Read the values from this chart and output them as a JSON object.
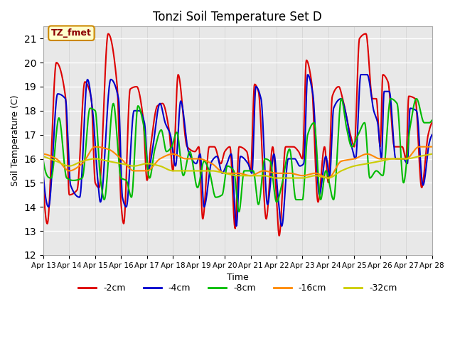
{
  "title": "Tonzi Soil Temperature Set D",
  "xlabel": "Time",
  "ylabel": "Soil Temperature (C)",
  "ylim": [
    12.0,
    21.5
  ],
  "yticks": [
    12.0,
    13.0,
    14.0,
    15.0,
    16.0,
    17.0,
    18.0,
    19.0,
    20.0,
    21.0
  ],
  "xtick_labels": [
    "Apr 13",
    "Apr 14",
    "Apr 15",
    "Apr 16",
    "Apr 17",
    "Apr 18",
    "Apr 19",
    "Apr 20",
    "Apr 21",
    "Apr 22",
    "Apr 23",
    "Apr 24",
    "Apr 25",
    "Apr 26",
    "Apr 27",
    "Apr 28"
  ],
  "legend_labels": [
    "-2cm",
    "-4cm",
    "-8cm",
    "-16cm",
    "-32cm"
  ],
  "line_colors": [
    "#dd0000",
    "#0000cc",
    "#00bb00",
    "#ff8800",
    "#cccc00"
  ],
  "line_widths": [
    1.5,
    1.5,
    1.5,
    1.5,
    1.5
  ],
  "axes_background": "#e8e8e8",
  "grid_color": "#ffffff",
  "annotation_text": "TZ_fmet",
  "annotation_box_color": "#ffffcc",
  "annotation_box_edge": "#cc8800",
  "d2_keypoints_x": [
    0.0,
    0.15,
    0.5,
    0.85,
    1.0,
    1.3,
    1.6,
    1.85,
    2.0,
    2.15,
    2.5,
    2.85,
    3.0,
    3.1,
    3.35,
    3.6,
    3.85,
    4.0,
    4.15,
    4.4,
    4.6,
    4.85,
    5.0,
    5.2,
    5.55,
    5.85,
    6.0,
    6.15,
    6.4,
    6.6,
    6.85,
    7.0,
    7.2,
    7.4,
    7.55,
    7.85,
    8.0,
    8.15,
    8.3,
    8.6,
    8.85,
    9.0,
    9.1,
    9.35,
    9.65,
    9.85,
    10.0,
    10.15,
    10.35,
    10.6,
    10.85,
    11.0,
    11.15,
    11.4,
    11.55,
    11.85,
    12.0,
    12.2,
    12.45,
    12.7,
    12.85,
    13.0,
    13.1,
    13.3,
    13.55,
    13.85,
    14.0,
    14.1,
    14.35,
    14.6,
    14.85,
    15.0
  ],
  "d2_keypoints_y": [
    14.9,
    13.3,
    20.0,
    18.6,
    14.5,
    14.7,
    19.2,
    18.5,
    15.0,
    14.8,
    21.2,
    19.0,
    14.1,
    13.3,
    18.9,
    19.0,
    17.7,
    15.1,
    16.6,
    18.2,
    18.3,
    17.2,
    15.5,
    19.5,
    16.5,
    16.3,
    16.5,
    13.5,
    16.5,
    16.5,
    15.8,
    16.3,
    16.5,
    13.1,
    16.5,
    16.3,
    15.5,
    19.1,
    18.8,
    13.5,
    16.5,
    14.3,
    12.8,
    16.5,
    16.5,
    16.3,
    16.0,
    20.1,
    19.2,
    14.2,
    16.5,
    15.0,
    18.6,
    19.0,
    18.5,
    17.0,
    16.5,
    21.0,
    21.2,
    18.5,
    18.5,
    16.5,
    19.5,
    19.2,
    16.5,
    16.5,
    16.0,
    18.6,
    18.5,
    14.8,
    17.0,
    17.5
  ],
  "d4_keypoints_x": [
    0.0,
    0.2,
    0.55,
    0.85,
    1.05,
    1.4,
    1.7,
    1.9,
    2.1,
    2.2,
    2.6,
    2.9,
    3.05,
    3.2,
    3.5,
    3.7,
    3.9,
    4.05,
    4.2,
    4.5,
    4.7,
    4.9,
    5.1,
    5.3,
    5.6,
    5.9,
    6.05,
    6.2,
    6.5,
    6.7,
    6.9,
    7.05,
    7.25,
    7.45,
    7.6,
    7.9,
    8.05,
    8.2,
    8.4,
    8.65,
    8.9,
    9.05,
    9.2,
    9.45,
    9.7,
    9.9,
    10.05,
    10.2,
    10.4,
    10.65,
    10.9,
    11.05,
    11.2,
    11.5,
    11.65,
    11.9,
    12.05,
    12.25,
    12.5,
    12.75,
    12.9,
    13.05,
    13.15,
    13.35,
    13.6,
    13.9,
    14.05,
    14.15,
    14.4,
    14.65,
    14.9,
    15.0
  ],
  "d4_keypoints_y": [
    15.3,
    14.0,
    18.7,
    18.5,
    14.9,
    14.4,
    19.3,
    18.0,
    15.1,
    14.2,
    19.3,
    18.5,
    14.4,
    14.0,
    18.0,
    18.0,
    17.5,
    15.5,
    16.3,
    18.3,
    17.5,
    17.0,
    15.7,
    18.4,
    16.3,
    15.8,
    16.2,
    14.0,
    15.9,
    16.1,
    15.4,
    15.7,
    16.2,
    13.2,
    16.1,
    15.8,
    15.4,
    19.0,
    18.5,
    14.1,
    16.2,
    14.5,
    13.2,
    16.0,
    16.0,
    15.7,
    15.8,
    19.5,
    18.7,
    14.5,
    16.1,
    15.3,
    18.1,
    18.5,
    18.0,
    16.5,
    16.0,
    19.5,
    19.5,
    18.0,
    17.5,
    16.0,
    18.8,
    18.8,
    16.0,
    16.0,
    15.8,
    18.1,
    18.0,
    14.9,
    16.7,
    17.0
  ],
  "d8_keypoints_x": [
    0.0,
    0.3,
    0.6,
    0.9,
    1.15,
    1.5,
    1.8,
    2.0,
    2.2,
    2.35,
    2.7,
    3.0,
    3.2,
    3.4,
    3.65,
    3.85,
    4.1,
    4.3,
    4.55,
    4.75,
    4.95,
    5.15,
    5.4,
    5.65,
    5.95,
    6.2,
    6.4,
    6.65,
    6.9,
    7.1,
    7.35,
    7.55,
    7.75,
    8.1,
    8.3,
    8.55,
    8.75,
    9.0,
    9.2,
    9.5,
    9.75,
    10.0,
    10.2,
    10.45,
    10.7,
    10.9,
    11.2,
    11.5,
    11.7,
    11.9,
    12.15,
    12.4,
    12.6,
    12.85,
    13.1,
    13.4,
    13.65,
    13.9,
    14.15,
    14.4,
    14.7,
    14.9,
    15.0
  ],
  "d8_keypoints_y": [
    15.9,
    15.2,
    17.7,
    15.2,
    15.1,
    15.2,
    18.1,
    18.0,
    15.2,
    14.3,
    18.3,
    15.2,
    15.1,
    14.4,
    18.2,
    17.5,
    15.2,
    16.4,
    17.2,
    16.3,
    16.5,
    17.1,
    15.3,
    16.3,
    14.8,
    15.9,
    15.5,
    14.4,
    14.5,
    15.7,
    15.5,
    13.8,
    15.5,
    15.5,
    14.1,
    16.0,
    15.9,
    14.2,
    14.9,
    16.4,
    14.3,
    14.3,
    17.0,
    17.5,
    14.3,
    15.5,
    14.3,
    18.5,
    17.3,
    16.5,
    17.0,
    17.5,
    15.2,
    15.5,
    15.3,
    18.5,
    18.3,
    15.0,
    17.3,
    18.5,
    17.5,
    17.5,
    17.6
  ],
  "d16_keypoints_x": [
    0.0,
    0.5,
    1.0,
    1.5,
    2.0,
    2.5,
    3.0,
    3.5,
    4.0,
    4.5,
    5.0,
    5.5,
    6.0,
    6.5,
    7.0,
    7.5,
    8.0,
    8.5,
    9.0,
    9.5,
    10.0,
    10.5,
    11.0,
    11.5,
    12.0,
    12.5,
    13.0,
    13.5,
    14.0,
    14.5,
    15.0
  ],
  "d16_keypoints_y": [
    16.2,
    16.0,
    15.5,
    15.8,
    16.5,
    16.4,
    16.0,
    15.5,
    15.5,
    16.0,
    16.2,
    16.0,
    16.0,
    15.8,
    15.4,
    15.4,
    15.3,
    15.5,
    15.4,
    15.4,
    15.3,
    15.4,
    15.2,
    15.9,
    16.0,
    16.2,
    16.0,
    16.0,
    16.0,
    16.5,
    16.5
  ],
  "d32_keypoints_x": [
    0.0,
    0.5,
    1.0,
    1.5,
    2.0,
    2.5,
    3.0,
    3.5,
    4.0,
    4.5,
    5.0,
    5.5,
    6.0,
    6.5,
    7.0,
    7.5,
    8.0,
    8.5,
    9.0,
    9.5,
    10.0,
    10.5,
    11.0,
    11.5,
    12.0,
    12.5,
    13.0,
    13.5,
    14.0,
    14.5,
    15.0
  ],
  "d32_keypoints_y": [
    16.1,
    15.9,
    15.7,
    15.9,
    16.0,
    15.9,
    15.8,
    15.7,
    15.8,
    15.7,
    15.5,
    15.5,
    15.5,
    15.5,
    15.4,
    15.3,
    15.3,
    15.3,
    15.2,
    15.2,
    15.2,
    15.3,
    15.2,
    15.5,
    15.7,
    15.8,
    15.9,
    16.0,
    16.0,
    16.1,
    16.2
  ]
}
